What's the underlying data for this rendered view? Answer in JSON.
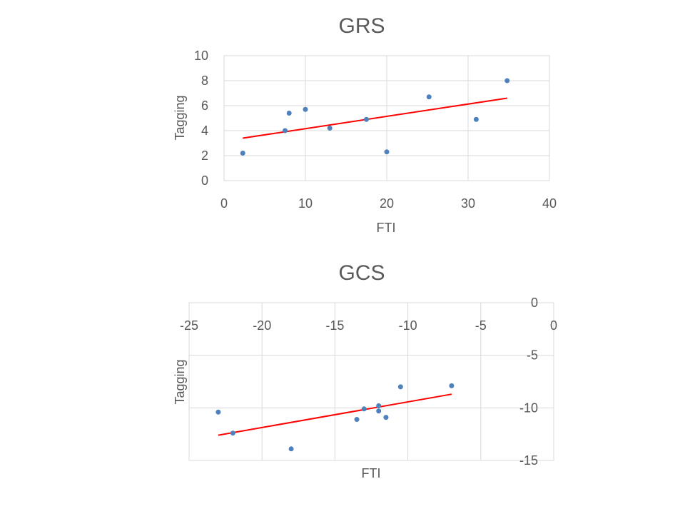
{
  "chart_data": [
    {
      "type": "scatter",
      "title": "GRS",
      "xlabel": "FTI",
      "ylabel": "Tagging",
      "xlim": [
        0,
        40
      ],
      "ylim": [
        0,
        10
      ],
      "x_ticks": [
        0,
        10,
        20,
        30,
        40
      ],
      "y_ticks": [
        0,
        2,
        4,
        6,
        8,
        10
      ],
      "grid": true,
      "points_color": "#4f81bd",
      "trendline_color": "#ff0000",
      "series": [
        {
          "x": [
            2.3,
            7.5,
            8.0,
            10.0,
            13.0,
            17.5,
            20.0,
            25.2,
            31.0,
            34.8
          ],
          "y": [
            2.2,
            4.0,
            5.4,
            5.7,
            4.2,
            4.9,
            2.3,
            6.7,
            4.9,
            8.0
          ]
        }
      ],
      "trendline": {
        "x": [
          2.3,
          34.8
        ],
        "y": [
          3.4,
          6.6
        ]
      }
    },
    {
      "type": "scatter",
      "title": "GCS",
      "xlabel": "FTI",
      "ylabel": "Tagging",
      "xlim": [
        -25,
        0
      ],
      "ylim": [
        -15,
        0
      ],
      "x_ticks": [
        -25,
        -20,
        -15,
        -10,
        -5,
        0
      ],
      "y_ticks": [
        0,
        -5,
        -10,
        -15
      ],
      "grid": true,
      "x_axis_position": "top",
      "y_axis_position": "right",
      "points_color": "#4f81bd",
      "trendline_color": "#ff0000",
      "series": [
        {
          "x": [
            -23.0,
            -22.0,
            -18.0,
            -13.5,
            -13.0,
            -12.0,
            -12.0,
            -11.5,
            -10.5,
            -7.0
          ],
          "y": [
            -10.4,
            -12.4,
            -13.9,
            -11.1,
            -10.1,
            -10.3,
            -9.8,
            -10.9,
            -8.0,
            -7.9
          ]
        }
      ],
      "trendline": {
        "x": [
          -23.0,
          -7.0
        ],
        "y": [
          -12.6,
          -8.7
        ]
      }
    }
  ]
}
